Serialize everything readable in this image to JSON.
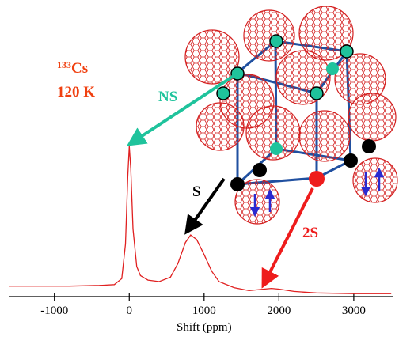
{
  "chart_data": {
    "type": "line",
    "xlabel": "Shift (ppm)",
    "x": [
      -1600,
      -1200,
      -800,
      -400,
      -200,
      -100,
      -50,
      -20,
      0,
      20,
      50,
      100,
      150,
      250,
      400,
      550,
      650,
      750,
      820,
      900,
      1000,
      1100,
      1200,
      1400,
      1600,
      1800,
      1900,
      2000,
      2200,
      2500,
      3000,
      3500
    ],
    "values": [
      0.07,
      0.07,
      0.07,
      0.075,
      0.08,
      0.12,
      0.35,
      0.8,
      1.0,
      0.85,
      0.45,
      0.2,
      0.14,
      0.11,
      0.1,
      0.13,
      0.22,
      0.36,
      0.41,
      0.38,
      0.28,
      0.17,
      0.1,
      0.06,
      0.04,
      0.05,
      0.055,
      0.05,
      0.035,
      0.025,
      0.02,
      0.02
    ],
    "color": "#e02020",
    "xlim": [
      -1600,
      3530
    ],
    "xticks": [
      -1000,
      0,
      1000,
      2000,
      3000
    ],
    "ylim": [
      0,
      1
    ],
    "annotations": {
      "isotope_mass": "133",
      "isotope_symbol": "Cs",
      "temperature": "120 K",
      "ns": "NS",
      "s": "S",
      "two_s": "2S"
    },
    "annotation_colors": {
      "label": "#f04010",
      "ns": "#1fc39c",
      "s": "#000000",
      "two_s": "#ee1c1c"
    }
  }
}
